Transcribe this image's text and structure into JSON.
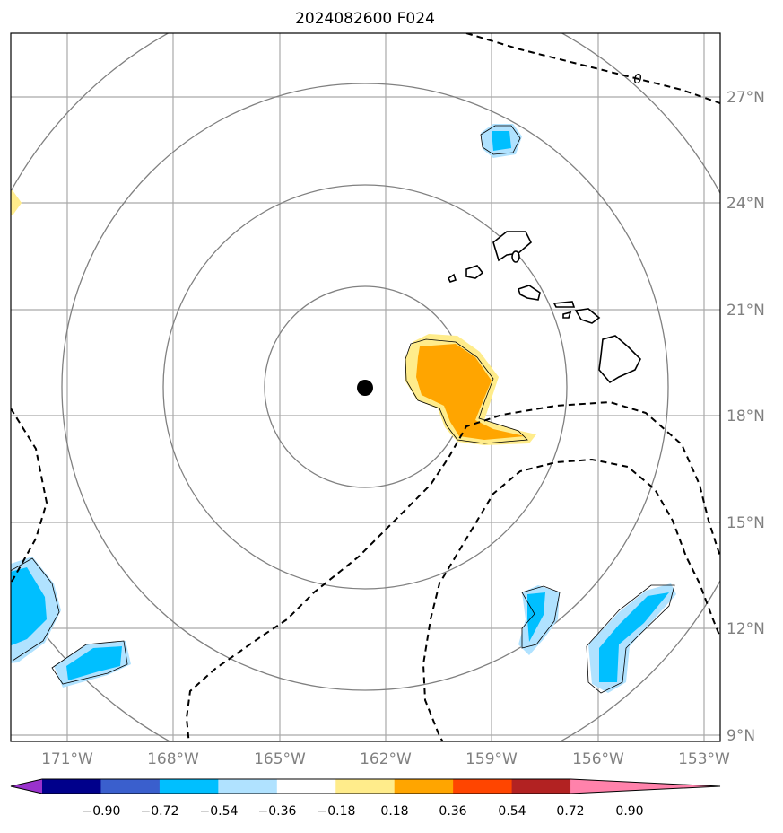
{
  "title": "2024082600 F024",
  "axes": {
    "x_labels": [
      "171°W",
      "168°W",
      "165°W",
      "162°W",
      "159°W",
      "156°W",
      "153°W"
    ],
    "y_labels": [
      "9°N",
      "12°N",
      "15°N",
      "18°N",
      "21°N",
      "24°N",
      "27°N"
    ]
  },
  "contour_label": "0",
  "colorbar": {
    "colors": [
      "#9a32cd",
      "#00008b",
      "#3a5fcd",
      "#00bfff",
      "#b0e2ff",
      "#ffffff",
      "#ffec8b",
      "#ffa500",
      "#ff4500",
      "#b22222",
      "#ff82ab"
    ],
    "tick_labels": [
      "−0.90",
      "−0.72",
      "−0.54",
      "−0.36",
      "−0.18",
      "0.18",
      "0.36",
      "0.54",
      "0.72",
      "0.90"
    ]
  },
  "colors": {
    "grid": "#a9a9a9",
    "range_rings": "#808080",
    "positive_light": "#ffec8b",
    "positive_mid": "#ffa500",
    "negative_light": "#b0e2ff",
    "negative_mid": "#00bfff",
    "tick_text": "#808080"
  }
}
